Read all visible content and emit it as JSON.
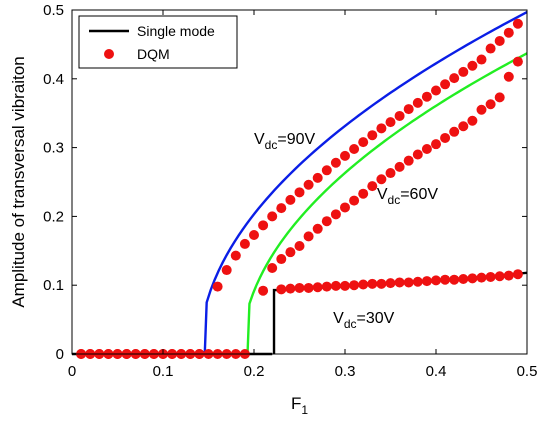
{
  "chart_data": {
    "type": "line",
    "title": "",
    "xlabel": "F",
    "xlabel_sub": "1",
    "ylabel": "Amplitude of transversal vibraiton",
    "xlim": [
      0,
      0.5
    ],
    "ylim": [
      0,
      0.5
    ],
    "xticks": [
      "0",
      "0.1",
      "0.2",
      "0.3",
      "0.4",
      "0.5"
    ],
    "yticks": [
      "0",
      "0.1",
      "0.2",
      "0.3",
      "0.4",
      "0.5"
    ],
    "grid": false,
    "legend": {
      "placement": "top-left",
      "entries": [
        {
          "label": "Single mode",
          "marker": "line",
          "color": "#000000"
        },
        {
          "label": "DQM",
          "marker": "dot",
          "color": "#ee1111"
        }
      ]
    },
    "series": [
      {
        "label": "V dc=90V",
        "label_main": "V",
        "label_sub": "dc",
        "label_tail": "=90V",
        "color": "#0a1ee6",
        "model": {
          "F_onset": 0.148,
          "A_onset": 0.075,
          "kind": "sqrt",
          "amp_at_0_5": 0.497
        },
        "x": [
          0.148,
          0.16,
          0.18,
          0.2,
          0.25,
          0.3,
          0.35,
          0.4,
          0.45,
          0.5
        ],
        "y": [
          0.075,
          0.103,
          0.143,
          0.173,
          0.235,
          0.288,
          0.337,
          0.383,
          0.428,
          0.497
        ],
        "points_x": [
          0.01,
          0.02,
          0.03,
          0.04,
          0.05,
          0.06,
          0.07,
          0.08,
          0.09,
          0.1,
          0.11,
          0.12,
          0.13,
          0.14,
          0.16,
          0.17,
          0.18,
          0.19,
          0.2,
          0.21,
          0.22,
          0.23,
          0.24,
          0.25,
          0.26,
          0.27,
          0.28,
          0.29,
          0.3,
          0.31,
          0.32,
          0.33,
          0.34,
          0.35,
          0.36,
          0.37,
          0.38,
          0.39,
          0.4,
          0.41,
          0.42,
          0.43,
          0.44,
          0.45,
          0.46,
          0.47,
          0.48,
          0.49
        ],
        "points_y": [
          0,
          0,
          0,
          0,
          0,
          0,
          0,
          0,
          0,
          0,
          0,
          0,
          0,
          0,
          0.098,
          0.122,
          0.143,
          0.16,
          0.173,
          0.187,
          0.2,
          0.212,
          0.224,
          0.235,
          0.246,
          0.256,
          0.267,
          0.278,
          0.288,
          0.298,
          0.308,
          0.318,
          0.328,
          0.337,
          0.346,
          0.356,
          0.365,
          0.374,
          0.383,
          0.392,
          0.401,
          0.41,
          0.419,
          0.428,
          0.444,
          0.455,
          0.467,
          0.48
        ]
      },
      {
        "label": "V dc=60V",
        "label_main": "V",
        "label_sub": "dc",
        "label_tail": "=60V",
        "color": "#22ee22",
        "model": {
          "F_onset": 0.195,
          "A_onset": 0.073,
          "kind": "sqrt",
          "amp_at_0_5": 0.437
        },
        "x": [
          0.195,
          0.2,
          0.22,
          0.25,
          0.3,
          0.35,
          0.4,
          0.45,
          0.5
        ],
        "y": [
          0.073,
          0.094,
          0.125,
          0.157,
          0.213,
          0.263,
          0.305,
          0.355,
          0.437
        ],
        "points_x": [
          0.01,
          0.02,
          0.03,
          0.04,
          0.05,
          0.06,
          0.07,
          0.08,
          0.09,
          0.1,
          0.11,
          0.12,
          0.13,
          0.14,
          0.15,
          0.16,
          0.17,
          0.18,
          0.19,
          0.21,
          0.22,
          0.23,
          0.24,
          0.25,
          0.26,
          0.27,
          0.28,
          0.29,
          0.3,
          0.31,
          0.32,
          0.33,
          0.34,
          0.35,
          0.36,
          0.37,
          0.38,
          0.39,
          0.4,
          0.41,
          0.42,
          0.43,
          0.44,
          0.45,
          0.46,
          0.47,
          0.48,
          0.49
        ],
        "points_y": [
          0,
          0,
          0,
          0,
          0,
          0,
          0,
          0,
          0,
          0,
          0,
          0,
          0,
          0,
          0,
          0,
          0,
          0,
          0,
          0.092,
          0.125,
          0.138,
          0.148,
          0.157,
          0.171,
          0.182,
          0.193,
          0.203,
          0.213,
          0.223,
          0.233,
          0.244,
          0.254,
          0.263,
          0.272,
          0.281,
          0.29,
          0.298,
          0.305,
          0.314,
          0.323,
          0.331,
          0.339,
          0.355,
          0.363,
          0.373,
          0.403,
          0.425
        ]
      },
      {
        "label": "V dc=30V",
        "label_main": "V",
        "label_sub": "dc",
        "label_tail": "=30V",
        "color": "#000000",
        "model": {
          "kind": "step"
        },
        "x": [
          0.222,
          0.225,
          0.25,
          0.3,
          0.35,
          0.4,
          0.45,
          0.5
        ],
        "y": [
          0.0,
          0.093,
          0.095,
          0.099,
          0.103,
          0.107,
          0.112,
          0.118
        ],
        "points_x": [
          0.23,
          0.24,
          0.25,
          0.26,
          0.27,
          0.28,
          0.29,
          0.3,
          0.31,
          0.32,
          0.33,
          0.34,
          0.35,
          0.36,
          0.37,
          0.38,
          0.39,
          0.4,
          0.41,
          0.42,
          0.43,
          0.44,
          0.45,
          0.46,
          0.47,
          0.48,
          0.49
        ],
        "points_y": [
          0.094,
          0.095,
          0.096,
          0.096,
          0.097,
          0.098,
          0.099,
          0.099,
          0.1,
          0.101,
          0.102,
          0.102,
          0.103,
          0.104,
          0.104,
          0.105,
          0.106,
          0.107,
          0.108,
          0.108,
          0.109,
          0.11,
          0.111,
          0.112,
          0.113,
          0.114,
          0.116
        ]
      }
    ],
    "shared_zero_line": {
      "x_start": 0.0,
      "x_end": 0.22,
      "y": 0.0,
      "color": "#000000"
    }
  }
}
